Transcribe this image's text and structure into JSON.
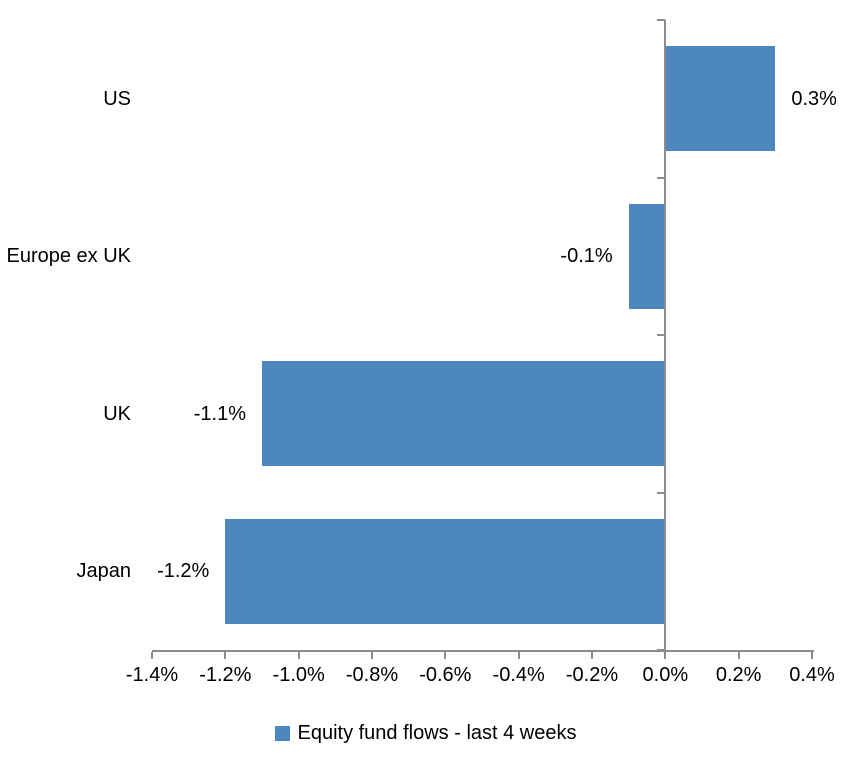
{
  "chart_data": {
    "type": "bar",
    "orientation": "horizontal",
    "categories": [
      "US",
      "Europe ex UK",
      "UK",
      "Japan"
    ],
    "values": [
      0.3,
      -0.1,
      -1.1,
      -1.2
    ],
    "value_labels": [
      "0.3%",
      "-0.1%",
      "-1.1%",
      "-1.2%"
    ],
    "unit": "%",
    "xlim": [
      -1.4,
      0.4
    ],
    "x_tick_values": [
      -1.4,
      -1.2,
      -1.0,
      -0.8,
      -0.6,
      -0.4,
      -0.2,
      0.0,
      0.2,
      0.4
    ],
    "x_tick_labels": [
      "-1.4%",
      "-1.2%",
      "-1.0%",
      "-0.8%",
      "-0.6%",
      "-0.4%",
      "-0.2%",
      "0.0%",
      "0.2%",
      "0.4%"
    ],
    "grid": false,
    "legend_position": "bottom-center",
    "legend": [
      {
        "label": "Equity fund flows - last 4 weeks",
        "swatch_color": "#4E86BE"
      }
    ],
    "colors": {
      "bar": "#4E86BE",
      "axis": "#8C8C8C",
      "text": "#000000",
      "background": "#FFFFFF"
    }
  }
}
